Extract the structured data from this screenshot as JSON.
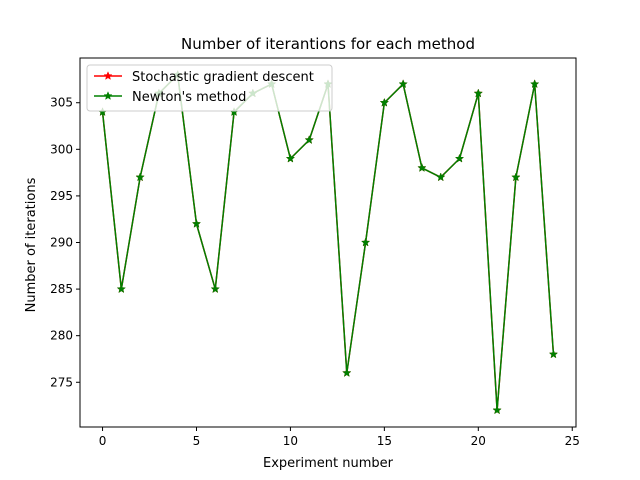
{
  "chart_data": {
    "type": "line",
    "title": "Number of iterantions for each method",
    "xlabel": "Experiment number",
    "ylabel": "Number of iterations",
    "x": [
      0,
      1,
      2,
      3,
      4,
      5,
      6,
      7,
      8,
      9,
      10,
      11,
      12,
      13,
      14,
      15,
      16,
      17,
      18,
      19,
      20,
      21,
      22,
      23,
      24
    ],
    "xlim": [
      -1.2,
      25.2
    ],
    "ylim": [
      270.2,
      309.8
    ],
    "xticks": [
      0,
      5,
      10,
      15,
      20,
      25
    ],
    "yticks": [
      275,
      280,
      285,
      290,
      295,
      300,
      305
    ],
    "grid": false,
    "legend_position": "top-left",
    "series": [
      {
        "name": "Stochastic gradient descent",
        "color": "#ff0000",
        "marker": "star",
        "values": [
          304,
          285,
          297,
          306,
          308,
          292,
          285,
          304,
          306,
          307,
          299,
          301,
          307,
          276,
          290,
          305,
          307,
          298,
          297,
          299,
          306,
          272,
          297,
          307,
          278
        ]
      },
      {
        "name": "Newton's method",
        "color": "#008000",
        "marker": "star",
        "values": [
          304,
          285,
          297,
          306,
          308,
          292,
          285,
          304,
          306,
          307,
          299,
          301,
          307,
          276,
          290,
          305,
          307,
          298,
          297,
          299,
          306,
          272,
          297,
          307,
          278
        ]
      }
    ]
  }
}
